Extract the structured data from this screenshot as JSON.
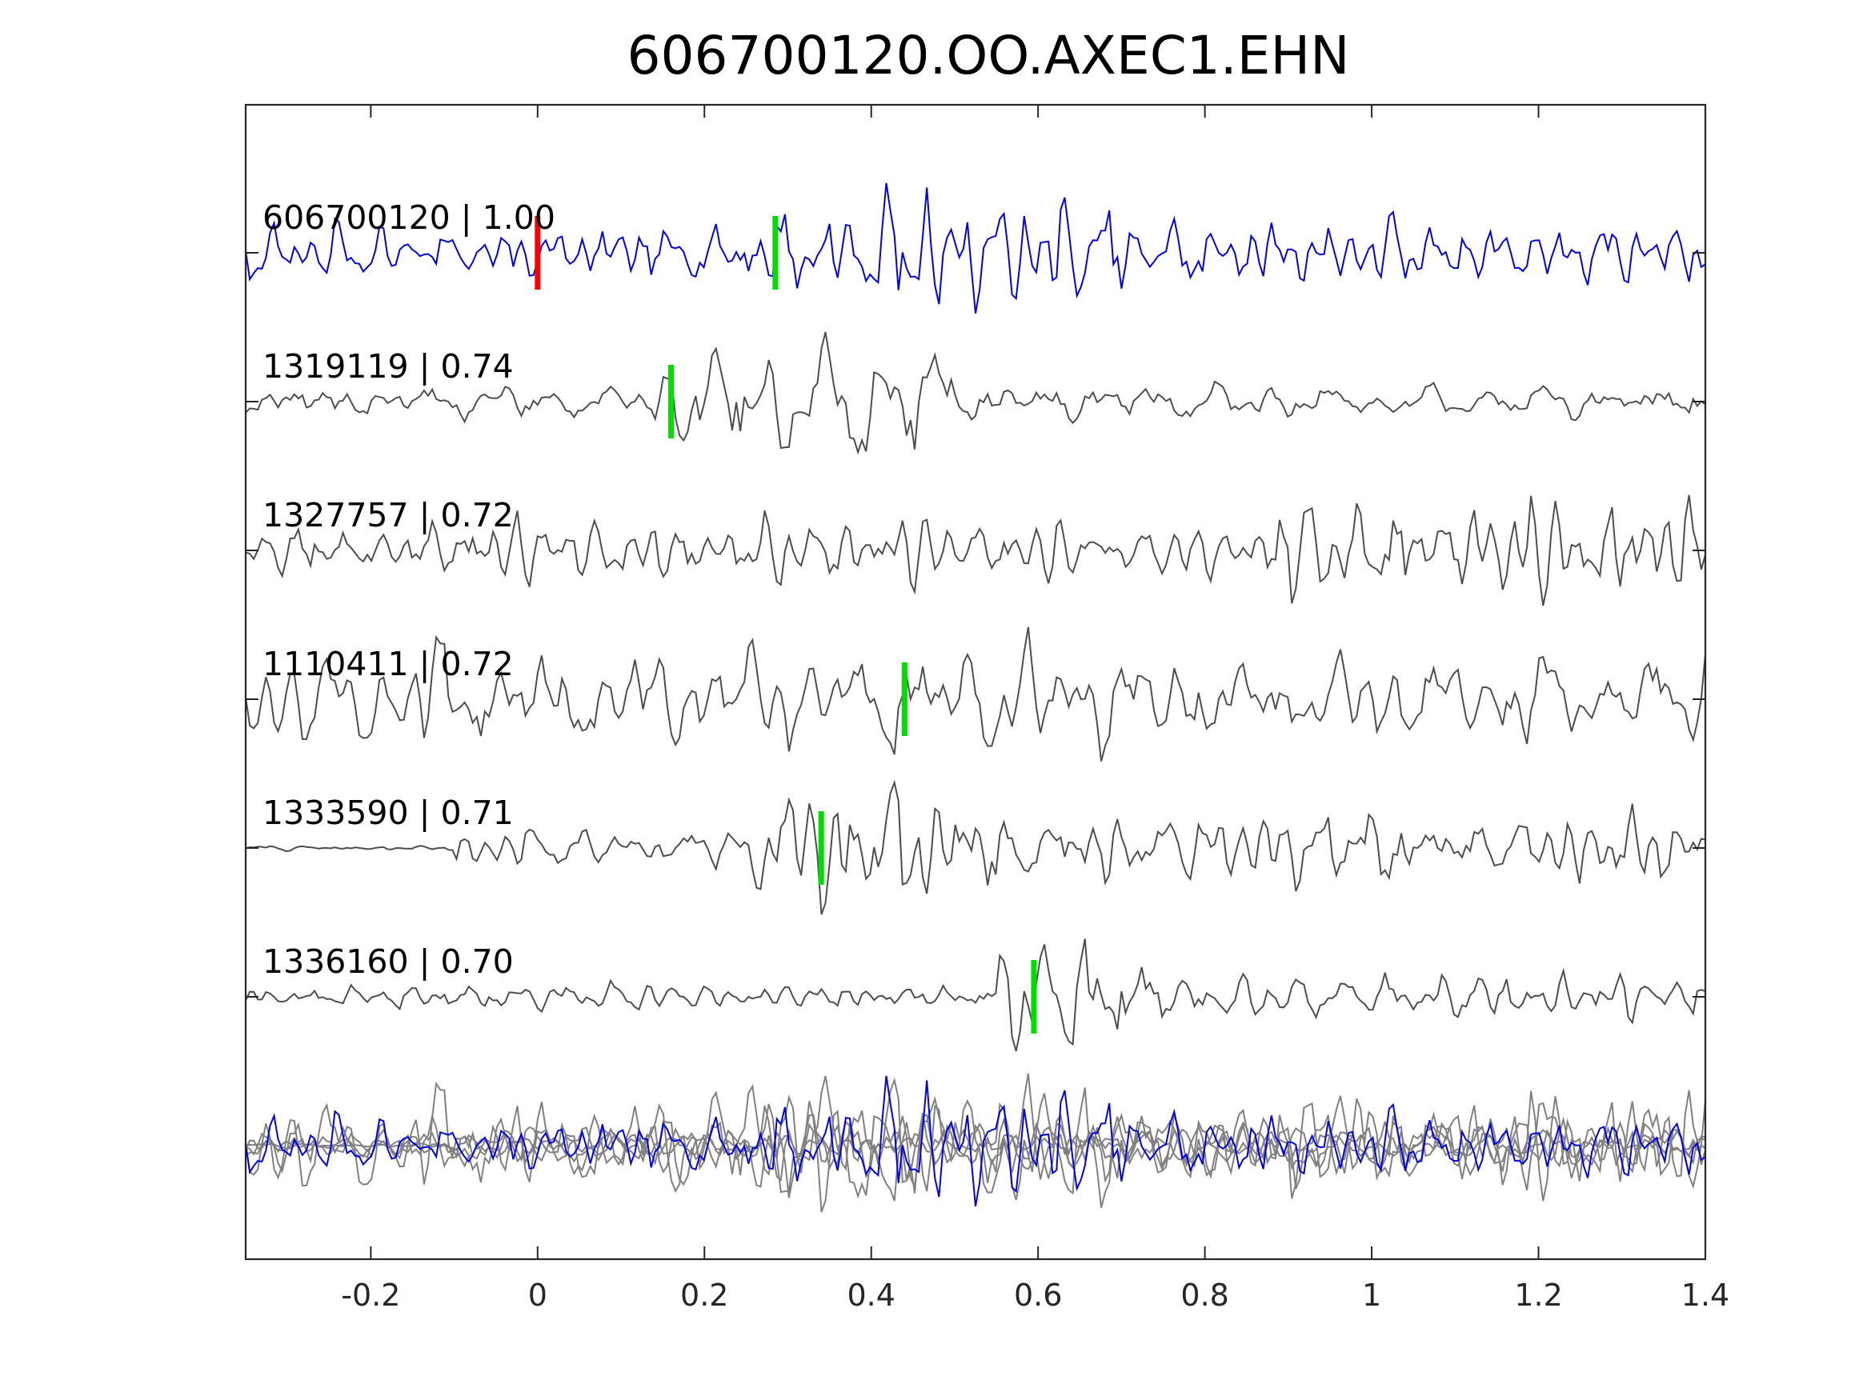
{
  "chart_data": {
    "type": "line",
    "title": "606700120.OO.AXEC1.EHN",
    "xlabel": "",
    "ylabel": "",
    "xlim": [
      -0.35,
      1.4
    ],
    "xticks": [
      "-0.2",
      "0",
      "0.2",
      "0.4",
      "0.6",
      "0.8",
      "1",
      "1.2",
      "1.4"
    ],
    "xtick_values": [
      -0.2,
      0,
      0.2,
      0.4,
      0.6,
      0.8,
      1.0,
      1.2,
      1.4
    ],
    "grid": false,
    "colors": {
      "template": "#0000ee",
      "match": "#4d4d4d",
      "overlay_match": "#808080",
      "pick_p": "#ff0000",
      "pick_s": "#00dd00",
      "axis": "#262626"
    },
    "series": [
      {
        "name": "606700120 | 1.00",
        "color": "template",
        "seed": 7,
        "amplitude": 1.0,
        "picks": [
          {
            "x": 0.0,
            "color": "pick_p"
          },
          {
            "x": 0.285,
            "color": "pick_s"
          }
        ],
        "segments": [
          [
            -0.35,
            0.25,
            0.6
          ],
          [
            0.25,
            0.8,
            1.1
          ],
          [
            0.8,
            1.4,
            0.7
          ]
        ]
      },
      {
        "name": "1319119 | 0.74",
        "color": "match",
        "seed": 19,
        "amplitude": 1.0,
        "picks": [
          {
            "x": 0.16,
            "color": "pick_s"
          }
        ],
        "segments": [
          [
            -0.35,
            0.14,
            0.35
          ],
          [
            0.14,
            0.5,
            1.2
          ],
          [
            0.5,
            1.4,
            0.35
          ]
        ]
      },
      {
        "name": "1327757 | 0.72",
        "color": "match",
        "seed": 31,
        "amplitude": 1.0,
        "picks": [],
        "segments": [
          [
            -0.35,
            0.85,
            0.55
          ],
          [
            0.85,
            1.4,
            0.95
          ]
        ]
      },
      {
        "name": "1110411 | 0.72",
        "color": "match",
        "seed": 43,
        "amplitude": 1.0,
        "picks": [
          {
            "x": 0.44,
            "color": "pick_s"
          }
        ],
        "segments": [
          [
            -0.35,
            0.3,
            0.9
          ],
          [
            0.3,
            1.4,
            0.85
          ]
        ]
      },
      {
        "name": "1333590 | 0.71",
        "color": "match",
        "seed": 57,
        "amplitude": 1.0,
        "picks": [
          {
            "x": 0.34,
            "color": "pick_s"
          }
        ],
        "segments": [
          [
            -0.35,
            -0.1,
            0.05
          ],
          [
            -0.1,
            0.25,
            0.4
          ],
          [
            0.25,
            0.55,
            1.25
          ],
          [
            0.55,
            1.4,
            0.7
          ]
        ]
      },
      {
        "name": "1336160 | 0.70",
        "color": "match",
        "seed": 71,
        "amplitude": 1.0,
        "picks": [
          {
            "x": 0.595,
            "color": "pick_s"
          }
        ],
        "segments": [
          [
            -0.35,
            0.55,
            0.25
          ],
          [
            0.55,
            0.75,
            1.3
          ],
          [
            0.75,
            1.4,
            0.45
          ]
        ]
      }
    ],
    "overlay": true
  }
}
